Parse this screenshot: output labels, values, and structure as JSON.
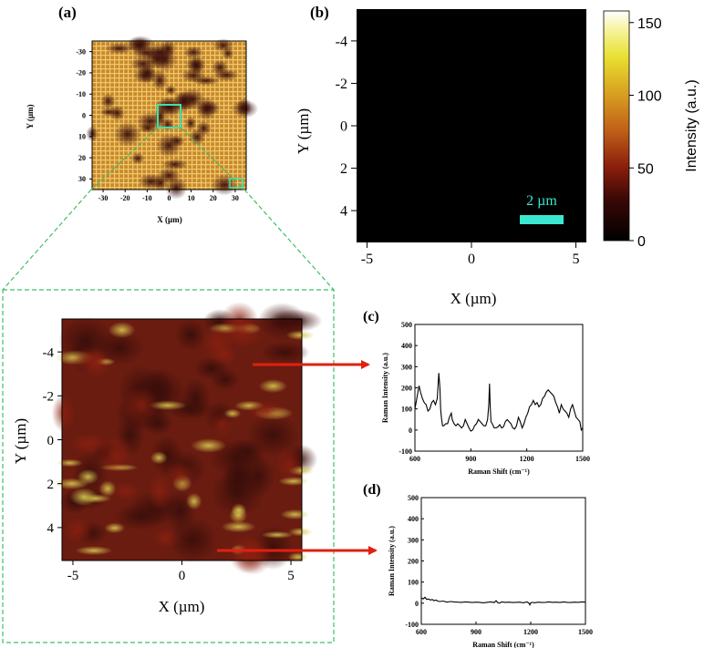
{
  "colors": {
    "dashed_box": "#3cc060",
    "inset_box": "#3de0b0",
    "scale_bar": "#3ae8d0",
    "arrow": "#e02010",
    "axis": "#000000",
    "spectrum_line": "#000000"
  },
  "panel_a": {
    "label": "(a)",
    "xlabel": "X (µm)",
    "ylabel": "Y (µm)",
    "xticks": [
      "-30",
      "-20",
      "-10",
      "0",
      "10",
      "20",
      "30"
    ],
    "yticks": [
      "-30",
      "-20",
      "-10",
      "0",
      "10",
      "20",
      "30"
    ],
    "xlim": [
      -35,
      35
    ],
    "ylim": [
      -35,
      35
    ]
  },
  "zoom": {
    "xlabel": "X (µm)",
    "ylabel": "Y (µm)",
    "xticks": [
      "-5",
      "0",
      "5"
    ],
    "yticks": [
      "-4",
      "-2",
      "0",
      "2",
      "4"
    ],
    "xlim": [
      -5.5,
      5.5
    ],
    "ylim": [
      -5.5,
      5.5
    ]
  },
  "panel_b": {
    "label": "(b)",
    "xlabel": "X (µm)",
    "ylabel": "Y (µm)",
    "xticks": [
      "-5",
      "0",
      "5"
    ],
    "yticks": [
      "-4",
      "-2",
      "0",
      "2",
      "4"
    ],
    "scalebar_label": "2 µm",
    "colorbar_label": "Intensity (a.u.)",
    "colorbar_ticks": [
      "150",
      "100",
      "50",
      "0"
    ],
    "colorbar_range": [
      0,
      158
    ]
  },
  "chart_data": [
    {
      "type": "heatmap",
      "id": "a",
      "xlabel": "X (µm)",
      "ylabel": "Y (µm)",
      "xlim": [
        -35,
        35
      ],
      "ylim": [
        -35,
        35
      ]
    },
    {
      "type": "heatmap",
      "id": "zoom",
      "xlabel": "X (µm)",
      "ylabel": "Y (µm)",
      "xlim": [
        -5.5,
        5.5
      ],
      "ylim": [
        -5.5,
        5.5
      ]
    },
    {
      "type": "heatmap",
      "id": "b",
      "xlabel": "X (µm)",
      "ylabel": "Y (µm)",
      "xlim": [
        -5.5,
        5.5
      ],
      "ylim": [
        -5.5,
        5.5
      ],
      "colorbar": {
        "label": "Intensity (a.u.)",
        "min": 0,
        "max": 158,
        "ticks": [
          0,
          50,
          100,
          150
        ]
      },
      "values": "uniform ~0"
    },
    {
      "type": "line",
      "id": "c",
      "label": "(c)",
      "xlabel": "Raman Shift (cm⁻¹)",
      "ylabel": "Raman Intensity (a.u.)",
      "xticks": [
        600,
        900,
        1200,
        1500
      ],
      "yticks": [
        -100,
        0,
        100,
        200,
        300,
        400,
        500
      ],
      "xlim": [
        600,
        1500
      ],
      "ylim": [
        -100,
        500
      ],
      "x": [
        600,
        612,
        622,
        630,
        640,
        650,
        660,
        670,
        680,
        690,
        700,
        710,
        720,
        728,
        734,
        738,
        742,
        748,
        755,
        765,
        775,
        785,
        795,
        800,
        810,
        820,
        830,
        840,
        850,
        860,
        870,
        880,
        890,
        900,
        910,
        920,
        930,
        940,
        950,
        960,
        970,
        980,
        990,
        996,
        1000,
        1004,
        1008,
        1015,
        1025,
        1035,
        1045,
        1055,
        1065,
        1075,
        1085,
        1095,
        1105,
        1115,
        1125,
        1135,
        1145,
        1155,
        1165,
        1175,
        1185,
        1195,
        1205,
        1215,
        1225,
        1235,
        1245,
        1255,
        1265,
        1275,
        1285,
        1295,
        1305,
        1315,
        1325,
        1335,
        1345,
        1355,
        1365,
        1375,
        1385,
        1395,
        1405,
        1415,
        1425,
        1435,
        1445,
        1455,
        1465,
        1475,
        1485,
        1492,
        1500
      ],
      "y": [
        100,
        160,
        210,
        180,
        150,
        130,
        120,
        90,
        100,
        130,
        140,
        120,
        150,
        270,
        200,
        100,
        60,
        20,
        20,
        30,
        30,
        60,
        80,
        50,
        30,
        20,
        30,
        20,
        10,
        20,
        50,
        30,
        10,
        -5,
        0,
        20,
        30,
        50,
        40,
        30,
        20,
        20,
        50,
        120,
        220,
        110,
        40,
        30,
        10,
        10,
        15,
        25,
        10,
        15,
        40,
        50,
        40,
        30,
        10,
        5,
        20,
        60,
        40,
        10,
        30,
        60,
        80,
        110,
        120,
        140,
        120,
        130,
        110,
        120,
        150,
        160,
        180,
        190,
        180,
        170,
        160,
        130,
        110,
        80,
        120,
        100,
        90,
        80,
        60,
        100,
        120,
        90,
        60,
        50,
        40,
        0,
        10
      ]
    },
    {
      "type": "line",
      "id": "d",
      "label": "(d)",
      "xlabel": "Raman Shift (cm⁻¹)",
      "ylabel": "Raman Intensity (a.u.)",
      "xticks": [
        600,
        900,
        1200,
        1500
      ],
      "yticks": [
        -100,
        0,
        100,
        200,
        300,
        400,
        500
      ],
      "xlim": [
        600,
        1500
      ],
      "ylim": [
        -100,
        500
      ],
      "x": [
        600,
        610,
        620,
        630,
        640,
        650,
        660,
        670,
        680,
        690,
        700,
        720,
        740,
        760,
        780,
        800,
        820,
        840,
        860,
        880,
        900,
        920,
        940,
        960,
        980,
        1000,
        1010,
        1020,
        1030,
        1040,
        1060,
        1080,
        1100,
        1120,
        1140,
        1160,
        1180,
        1190,
        1195,
        1200,
        1210,
        1220,
        1240,
        1260,
        1280,
        1300,
        1320,
        1340,
        1360,
        1380,
        1400,
        1420,
        1440,
        1460,
        1480,
        1500
      ],
      "y": [
        25,
        20,
        28,
        18,
        20,
        15,
        18,
        12,
        15,
        10,
        8,
        10,
        5,
        8,
        6,
        5,
        4,
        6,
        5,
        3,
        5,
        4,
        2,
        4,
        6,
        3,
        12,
        2,
        0,
        6,
        4,
        5,
        3,
        4,
        5,
        2,
        6,
        0,
        -8,
        2,
        4,
        2,
        5,
        3,
        4,
        6,
        4,
        5,
        3,
        6,
        4,
        3,
        5,
        4,
        6,
        5
      ]
    }
  ]
}
